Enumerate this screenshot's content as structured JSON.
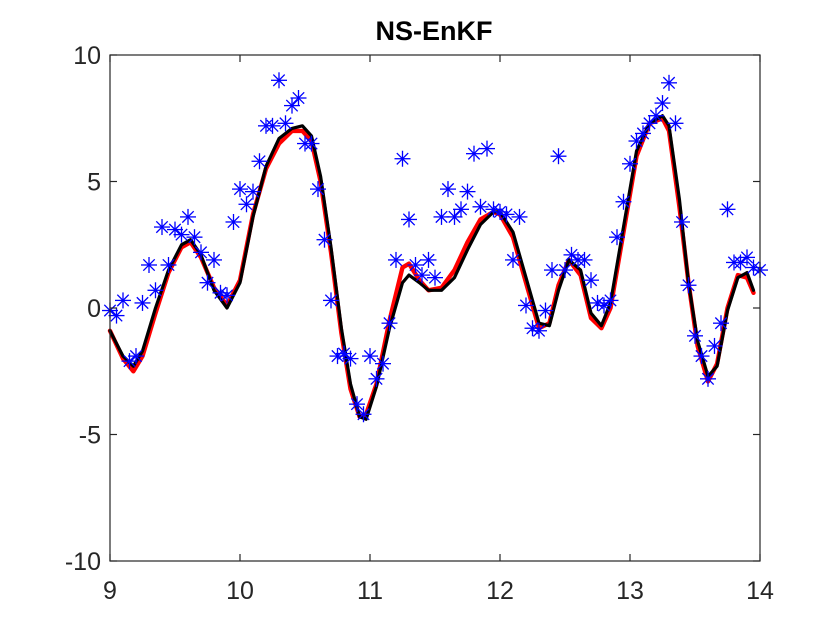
{
  "chart_data": {
    "type": "line",
    "title": "NS-EnKF",
    "xlabel": "",
    "ylabel": "",
    "xlim": [
      9,
      14
    ],
    "ylim": [
      -10,
      10
    ],
    "xticks": [
      9,
      10,
      11,
      12,
      13,
      14
    ],
    "yticks": [
      -10,
      -5,
      0,
      5,
      10
    ],
    "xtick_labels": [
      "9",
      "10",
      "11",
      "12",
      "13",
      "14"
    ],
    "ytick_labels": [
      "-10",
      "-5",
      "0",
      "5",
      "10"
    ],
    "grid": false,
    "legend": "none",
    "series": [
      {
        "style": "line",
        "color": "#ff0000",
        "x": [
          9.0,
          9.1,
          9.18,
          9.25,
          9.35,
          9.45,
          9.55,
          9.62,
          9.7,
          9.8,
          9.9,
          10.0,
          10.1,
          10.2,
          10.3,
          10.4,
          10.48,
          10.55,
          10.62,
          10.7,
          10.78,
          10.85,
          10.92,
          10.97,
          11.05,
          11.15,
          11.25,
          11.3,
          11.38,
          11.45,
          11.55,
          11.65,
          11.75,
          11.85,
          11.95,
          12.0,
          12.1,
          12.2,
          12.3,
          12.38,
          12.45,
          12.53,
          12.62,
          12.7,
          12.78,
          12.85,
          12.95,
          13.05,
          13.15,
          13.25,
          13.3,
          13.38,
          13.45,
          13.52,
          13.6,
          13.67,
          13.75,
          13.83,
          13.9,
          13.95
        ],
        "y": [
          -0.9,
          -2.0,
          -2.5,
          -1.9,
          -0.2,
          1.4,
          2.4,
          2.6,
          2.0,
          0.8,
          0.1,
          1.1,
          3.7,
          5.5,
          6.5,
          7.0,
          7.0,
          6.6,
          5.0,
          2.2,
          -1.0,
          -3.2,
          -4.3,
          -4.2,
          -3.0,
          -0.5,
          1.6,
          1.75,
          1.1,
          0.7,
          0.8,
          1.5,
          2.6,
          3.5,
          3.8,
          3.7,
          2.8,
          1.0,
          -0.8,
          -0.6,
          0.9,
          1.9,
          1.3,
          -0.4,
          -0.8,
          0.0,
          3.0,
          6.0,
          7.3,
          7.5,
          7.0,
          4.0,
          1.0,
          -1.5,
          -2.9,
          -2.2,
          0.0,
          1.3,
          1.2,
          0.6
        ]
      },
      {
        "style": "line",
        "color": "#000000",
        "x": [
          9.0,
          9.1,
          9.18,
          9.25,
          9.35,
          9.45,
          9.55,
          9.62,
          9.7,
          9.8,
          9.9,
          10.0,
          10.1,
          10.2,
          10.3,
          10.4,
          10.48,
          10.55,
          10.62,
          10.7,
          10.78,
          10.85,
          10.92,
          10.97,
          11.05,
          11.15,
          11.25,
          11.3,
          11.38,
          11.45,
          11.55,
          11.65,
          11.75,
          11.85,
          11.95,
          12.0,
          12.1,
          12.2,
          12.3,
          12.38,
          12.45,
          12.53,
          12.62,
          12.7,
          12.78,
          12.85,
          12.95,
          13.05,
          13.15,
          13.25,
          13.3,
          13.38,
          13.45,
          13.52,
          13.6,
          13.67,
          13.75,
          13.83,
          13.9,
          13.95
        ],
        "y": [
          -0.9,
          -1.9,
          -2.3,
          -1.7,
          0.0,
          1.5,
          2.5,
          2.7,
          2.1,
          0.7,
          0.0,
          1.0,
          3.6,
          5.6,
          6.7,
          7.1,
          7.2,
          6.8,
          5.2,
          2.4,
          -0.8,
          -3.0,
          -4.3,
          -4.4,
          -3.1,
          -0.8,
          1.0,
          1.3,
          1.0,
          0.7,
          0.7,
          1.2,
          2.3,
          3.3,
          3.8,
          3.8,
          3.0,
          1.2,
          -0.6,
          -0.7,
          0.7,
          1.9,
          1.5,
          -0.2,
          -0.7,
          0.2,
          3.2,
          6.2,
          7.3,
          7.6,
          7.2,
          4.3,
          1.0,
          -1.3,
          -2.7,
          -2.3,
          -0.1,
          1.2,
          1.4,
          0.7
        ]
      },
      {
        "style": "markers",
        "marker": "asterisk",
        "color": "#0000ff",
        "x": [
          9.0,
          9.05,
          9.1,
          9.15,
          9.2,
          9.25,
          9.3,
          9.35,
          9.4,
          9.45,
          9.5,
          9.55,
          9.6,
          9.65,
          9.7,
          9.75,
          9.8,
          9.85,
          9.9,
          9.95,
          10.0,
          10.05,
          10.1,
          10.15,
          10.2,
          10.25,
          10.3,
          10.35,
          10.4,
          10.45,
          10.5,
          10.55,
          10.6,
          10.65,
          10.7,
          10.75,
          10.8,
          10.85,
          10.9,
          10.95,
          11.0,
          11.05,
          11.1,
          11.15,
          11.2,
          11.25,
          11.3,
          11.35,
          11.4,
          11.45,
          11.5,
          11.55,
          11.6,
          11.65,
          11.7,
          11.75,
          11.8,
          11.85,
          11.9,
          11.95,
          12.0,
          12.05,
          12.1,
          12.15,
          12.2,
          12.25,
          12.3,
          12.35,
          12.4,
          12.45,
          12.5,
          12.55,
          12.6,
          12.65,
          12.7,
          12.75,
          12.8,
          12.85,
          12.9,
          12.95,
          13.0,
          13.05,
          13.1,
          13.15,
          13.2,
          13.25,
          13.3,
          13.35,
          13.4,
          13.45,
          13.5,
          13.55,
          13.6,
          13.65,
          13.7,
          13.75,
          13.8,
          13.85,
          13.9,
          13.95,
          14.0
        ],
        "y": [
          -0.1,
          -0.3,
          0.3,
          -2.1,
          -1.9,
          0.2,
          1.7,
          0.7,
          3.2,
          1.7,
          3.1,
          2.9,
          3.6,
          2.8,
          2.2,
          1.0,
          1.9,
          0.6,
          0.5,
          3.4,
          4.7,
          4.1,
          4.6,
          5.8,
          7.2,
          7.2,
          9.0,
          7.3,
          8.0,
          8.3,
          6.5,
          6.5,
          4.7,
          2.7,
          0.3,
          -1.9,
          -1.8,
          -2.0,
          -3.8,
          -4.2,
          -1.9,
          -2.8,
          -2.2,
          -0.6,
          1.9,
          5.9,
          3.5,
          1.7,
          1.3,
          1.9,
          1.2,
          3.6,
          4.7,
          3.6,
          3.9,
          4.6,
          6.1,
          4.0,
          6.3,
          3.9,
          3.8,
          3.7,
          1.9,
          3.6,
          0.1,
          -0.8,
          -0.9,
          -0.1,
          1.5,
          6.0,
          1.5,
          2.1,
          1.9,
          1.9,
          1.1,
          0.2,
          0.1,
          0.3,
          2.8,
          4.2,
          5.7,
          6.6,
          6.9,
          7.3,
          7.6,
          8.1,
          8.9,
          7.3,
          3.4,
          0.9,
          -1.1,
          -1.9,
          -2.8,
          -1.5,
          -0.6,
          3.9,
          1.8,
          1.8,
          2.0,
          1.6,
          1.5
        ]
      }
    ]
  }
}
